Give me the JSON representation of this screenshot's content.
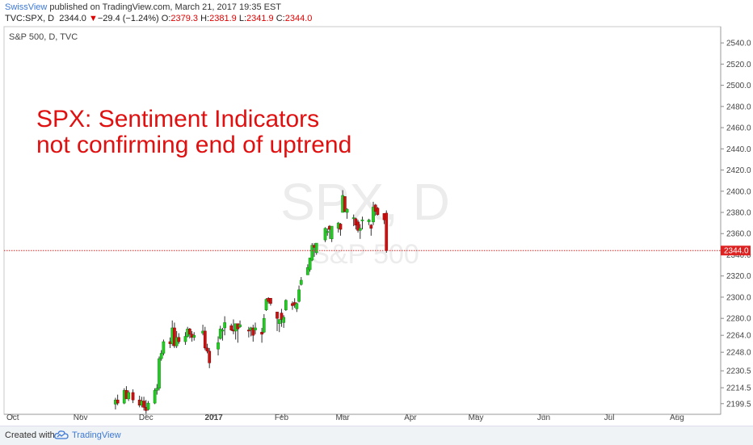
{
  "header": {
    "author": "SwissView",
    "published_text": " published on TradingView.com, March 21, 2017 19:35 EST",
    "symbol": "TVC:SPX, D",
    "last": "2344.0",
    "change_arrow": "▼",
    "change": "−29.4 (−1.24%)",
    "o_label": "O:",
    "o_value": "2379.3",
    "h_label": "H:",
    "h_value": "2381.9",
    "l_label": "L:",
    "l_value": "2341.9",
    "c_label": "C:",
    "c_value": "2344.0"
  },
  "pane_title": "S&P 500, D, TVC",
  "watermark": {
    "line1": "SPX, D",
    "line2": "S&P 500"
  },
  "annotation": {
    "line1": "SPX: Sentiment Indicators",
    "line2": "not confirming end of uptrend"
  },
  "footer": {
    "created_with": "Created with",
    "brand": "TradingView"
  },
  "colors": {
    "up": "#22cc22",
    "down": "#cc1111",
    "price_line": "#dd2222",
    "annotation": "#e01010"
  },
  "chart_data": {
    "type": "candlestick",
    "title": "S&P 500, D, TVC",
    "price_tag": "2344.0",
    "last_price": 2344.0,
    "ylim": [
      2194.0,
      2550.0
    ],
    "y_ticks": [
      "2199.5",
      "2214.5",
      "2230.5",
      "2248.0",
      "2264.0",
      "2280.0",
      "2300.0",
      "2320.0",
      "2340.0",
      "2360.0",
      "2380.0",
      "2400.0",
      "2420.0",
      "2440.0",
      "2460.0",
      "2480.0",
      "2500.0",
      "2520.0",
      "2540.0"
    ],
    "x_ticks": [
      "Oct",
      "Nov",
      "Dec",
      "2017",
      "Feb",
      "Mar",
      "Apr",
      "May",
      "Jun",
      "Jul",
      "Aug"
    ],
    "x_tick_dates": [
      "2016-10-01",
      "2016-11-01",
      "2016-12-01",
      "2017-01-01",
      "2017-02-01",
      "2017-03-01",
      "2017-04-01",
      "2017-05-01",
      "2017-06-01",
      "2017-07-01",
      "2017-08-01"
    ],
    "xlim": [
      "2016-09-27",
      "2017-08-21"
    ],
    "candles": [
      {
        "d": "2016-11-17",
        "o": 2199,
        "h": 2205,
        "l": 2194,
        "c": 2203
      },
      {
        "d": "2016-11-18",
        "o": 2203,
        "h": 2208,
        "l": 2198,
        "c": 2200
      },
      {
        "d": "2016-11-21",
        "o": 2200,
        "h": 2214,
        "l": 2199,
        "c": 2212
      },
      {
        "d": "2016-11-22",
        "o": 2212,
        "h": 2216,
        "l": 2206,
        "c": 2204
      },
      {
        "d": "2016-11-23",
        "o": 2204,
        "h": 2212,
        "l": 2202,
        "c": 2210
      },
      {
        "d": "2016-11-25",
        "o": 2210,
        "h": 2213,
        "l": 2200,
        "c": 2203
      },
      {
        "d": "2016-11-28",
        "o": 2203,
        "h": 2207,
        "l": 2196,
        "c": 2198
      },
      {
        "d": "2016-11-29",
        "o": 2198,
        "h": 2206,
        "l": 2196,
        "c": 2202
      },
      {
        "d": "2016-11-30",
        "o": 2202,
        "h": 2206,
        "l": 2193,
        "c": 2196
      },
      {
        "d": "2016-12-01",
        "o": 2196,
        "h": 2203,
        "l": 2190,
        "c": 2193
      },
      {
        "d": "2016-12-02",
        "o": 2194,
        "h": 2202,
        "l": 2193,
        "c": 2200
      },
      {
        "d": "2016-12-05",
        "o": 2200,
        "h": 2214,
        "l": 2199,
        "c": 2212
      },
      {
        "d": "2016-12-06",
        "o": 2212,
        "h": 2218,
        "l": 2208,
        "c": 2214
      },
      {
        "d": "2016-12-07",
        "o": 2214,
        "h": 2244,
        "l": 2212,
        "c": 2242
      },
      {
        "d": "2016-12-08",
        "o": 2242,
        "h": 2250,
        "l": 2240,
        "c": 2247
      },
      {
        "d": "2016-12-09",
        "o": 2247,
        "h": 2260,
        "l": 2245,
        "c": 2258
      },
      {
        "d": "2016-12-12",
        "o": 2258,
        "h": 2262,
        "l": 2252,
        "c": 2256
      },
      {
        "d": "2016-12-13",
        "o": 2256,
        "h": 2278,
        "l": 2254,
        "c": 2271
      },
      {
        "d": "2016-12-14",
        "o": 2271,
        "h": 2276,
        "l": 2252,
        "c": 2254
      },
      {
        "d": "2016-12-15",
        "o": 2254,
        "h": 2268,
        "l": 2252,
        "c": 2262
      },
      {
        "d": "2016-12-16",
        "o": 2262,
        "h": 2266,
        "l": 2256,
        "c": 2258
      },
      {
        "d": "2016-12-19",
        "o": 2258,
        "h": 2267,
        "l": 2255,
        "c": 2263
      },
      {
        "d": "2016-12-20",
        "o": 2263,
        "h": 2272,
        "l": 2262,
        "c": 2270
      },
      {
        "d": "2016-12-21",
        "o": 2270,
        "h": 2271,
        "l": 2261,
        "c": 2265
      },
      {
        "d": "2016-12-22",
        "o": 2265,
        "h": 2268,
        "l": 2258,
        "c": 2262
      },
      {
        "d": "2016-12-23",
        "o": 2262,
        "h": 2267,
        "l": 2259,
        "c": 2264
      },
      {
        "d": "2016-12-27",
        "o": 2266,
        "h": 2274,
        "l": 2264,
        "c": 2268
      },
      {
        "d": "2016-12-28",
        "o": 2268,
        "h": 2272,
        "l": 2250,
        "c": 2252
      },
      {
        "d": "2016-12-29",
        "o": 2252,
        "h": 2256,
        "l": 2247,
        "c": 2249
      },
      {
        "d": "2016-12-30",
        "o": 2249,
        "h": 2252,
        "l": 2233,
        "c": 2238
      },
      {
        "d": "2017-01-03",
        "o": 2251,
        "h": 2263,
        "l": 2245,
        "c": 2257
      },
      {
        "d": "2017-01-04",
        "o": 2261,
        "h": 2273,
        "l": 2260,
        "c": 2270
      },
      {
        "d": "2017-01-05",
        "o": 2268,
        "h": 2271,
        "l": 2259,
        "c": 2269
      },
      {
        "d": "2017-01-06",
        "o": 2271,
        "h": 2282,
        "l": 2264,
        "c": 2276
      },
      {
        "d": "2017-01-09",
        "o": 2273,
        "h": 2275,
        "l": 2268,
        "c": 2269
      },
      {
        "d": "2017-01-10",
        "o": 2269,
        "h": 2279,
        "l": 2265,
        "c": 2268
      },
      {
        "d": "2017-01-11",
        "o": 2268,
        "h": 2275,
        "l": 2260,
        "c": 2275
      },
      {
        "d": "2017-01-12",
        "o": 2275,
        "h": 2275,
        "l": 2257,
        "c": 2270
      },
      {
        "d": "2017-01-13",
        "o": 2272,
        "h": 2278,
        "l": 2271,
        "c": 2274
      },
      {
        "d": "2017-01-17",
        "o": 2269,
        "h": 2272,
        "l": 2262,
        "c": 2268
      },
      {
        "d": "2017-01-18",
        "o": 2269,
        "h": 2272,
        "l": 2263,
        "c": 2271
      },
      {
        "d": "2017-01-19",
        "o": 2271,
        "h": 2274,
        "l": 2258,
        "c": 2264
      },
      {
        "d": "2017-01-20",
        "o": 2269,
        "h": 2276,
        "l": 2265,
        "c": 2271
      },
      {
        "d": "2017-01-23",
        "o": 2267,
        "h": 2271,
        "l": 2257,
        "c": 2265
      },
      {
        "d": "2017-01-24",
        "o": 2267,
        "h": 2284,
        "l": 2266,
        "c": 2280
      },
      {
        "d": "2017-01-25",
        "o": 2288,
        "h": 2299,
        "l": 2287,
        "c": 2298
      },
      {
        "d": "2017-01-26",
        "o": 2299,
        "h": 2300,
        "l": 2294,
        "c": 2296
      },
      {
        "d": "2017-01-27",
        "o": 2299,
        "h": 2299,
        "l": 2292,
        "c": 2294
      },
      {
        "d": "2017-01-30",
        "o": 2286,
        "h": 2286,
        "l": 2268,
        "c": 2280
      },
      {
        "d": "2017-01-31",
        "o": 2275,
        "h": 2279,
        "l": 2267,
        "c": 2279
      },
      {
        "d": "2017-02-01",
        "o": 2285,
        "h": 2289,
        "l": 2272,
        "c": 2279
      },
      {
        "d": "2017-02-02",
        "o": 2276,
        "h": 2283,
        "l": 2271,
        "c": 2281
      },
      {
        "d": "2017-02-03",
        "o": 2288,
        "h": 2298,
        "l": 2287,
        "c": 2297
      },
      {
        "d": "2017-02-06",
        "o": 2294,
        "h": 2296,
        "l": 2288,
        "c": 2292
      },
      {
        "d": "2017-02-07",
        "o": 2295,
        "h": 2299,
        "l": 2290,
        "c": 2293
      },
      {
        "d": "2017-02-08",
        "o": 2289,
        "h": 2295,
        "l": 2286,
        "c": 2294
      },
      {
        "d": "2017-02-09",
        "o": 2296,
        "h": 2311,
        "l": 2295,
        "c": 2307
      },
      {
        "d": "2017-02-10",
        "o": 2312,
        "h": 2319,
        "l": 2311,
        "c": 2316
      },
      {
        "d": "2017-02-13",
        "o": 2321,
        "h": 2331,
        "l": 2321,
        "c": 2328
      },
      {
        "d": "2017-02-14",
        "o": 2326,
        "h": 2337,
        "l": 2324,
        "c": 2337
      },
      {
        "d": "2017-02-15",
        "o": 2335,
        "h": 2351,
        "l": 2334,
        "c": 2349
      },
      {
        "d": "2017-02-16",
        "o": 2349,
        "h": 2351,
        "l": 2338,
        "c": 2347
      },
      {
        "d": "2017-02-17",
        "o": 2342,
        "h": 2351,
        "l": 2340,
        "c": 2351
      },
      {
        "d": "2017-02-21",
        "o": 2354,
        "h": 2366,
        "l": 2352,
        "c": 2365
      },
      {
        "d": "2017-02-22",
        "o": 2361,
        "h": 2365,
        "l": 2358,
        "c": 2362
      },
      {
        "d": "2017-02-23",
        "o": 2367,
        "h": 2368,
        "l": 2355,
        "c": 2364
      },
      {
        "d": "2017-02-24",
        "o": 2355,
        "h": 2367,
        "l": 2352,
        "c": 2367
      },
      {
        "d": "2017-02-27",
        "o": 2365,
        "h": 2371,
        "l": 2361,
        "c": 2370
      },
      {
        "d": "2017-02-28",
        "o": 2369,
        "h": 2370,
        "l": 2358,
        "c": 2364
      },
      {
        "d": "2017-03-01",
        "o": 2380,
        "h": 2401,
        "l": 2380,
        "c": 2396
      },
      {
        "d": "2017-03-02",
        "o": 2395,
        "h": 2395,
        "l": 2380,
        "c": 2381
      },
      {
        "d": "2017-03-03",
        "o": 2380,
        "h": 2384,
        "l": 2374,
        "c": 2383
      },
      {
        "d": "2017-03-06",
        "o": 2375,
        "h": 2378,
        "l": 2367,
        "c": 2375
      },
      {
        "d": "2017-03-07",
        "o": 2374,
        "h": 2375,
        "l": 2364,
        "c": 2368
      },
      {
        "d": "2017-03-08",
        "o": 2371,
        "h": 2373,
        "l": 2361,
        "c": 2363
      },
      {
        "d": "2017-03-09",
        "o": 2363,
        "h": 2369,
        "l": 2355,
        "c": 2365
      },
      {
        "d": "2017-03-10",
        "o": 2372,
        "h": 2376,
        "l": 2364,
        "c": 2373
      },
      {
        "d": "2017-03-13",
        "o": 2371,
        "h": 2374,
        "l": 2368,
        "c": 2373
      },
      {
        "d": "2017-03-14",
        "o": 2368,
        "h": 2369,
        "l": 2358,
        "c": 2365
      },
      {
        "d": "2017-03-15",
        "o": 2371,
        "h": 2390,
        "l": 2368,
        "c": 2385
      },
      {
        "d": "2017-03-16",
        "o": 2387,
        "h": 2388,
        "l": 2377,
        "c": 2381
      },
      {
        "d": "2017-03-17",
        "o": 2384,
        "h": 2385,
        "l": 2377,
        "c": 2378
      },
      {
        "d": "2017-03-20",
        "o": 2379,
        "h": 2379,
        "l": 2369,
        "c": 2373
      },
      {
        "d": "2017-03-21",
        "o": 2379.3,
        "h": 2381.9,
        "l": 2341.9,
        "c": 2344.0
      }
    ]
  }
}
